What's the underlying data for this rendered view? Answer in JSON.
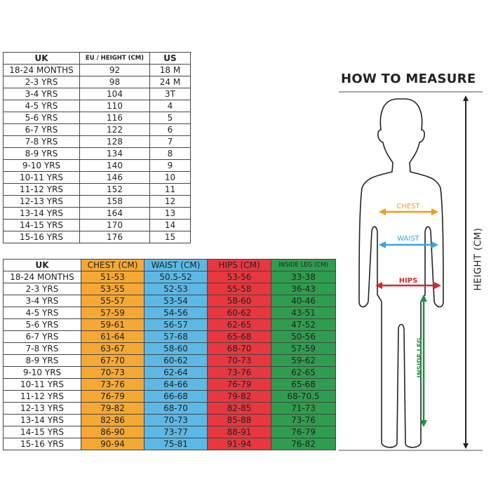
{
  "size_table": {
    "headers": [
      "UK",
      "EU / HEIGHT (CM)",
      "US"
    ],
    "rows": [
      [
        "18-24 MONTHS",
        "92",
        "18 M"
      ],
      [
        "2-3 YRS",
        "98",
        "24 M"
      ],
      [
        "3-4 YRS",
        "104",
        "3T"
      ],
      [
        "4-5 YRS",
        "110",
        "4"
      ],
      [
        "5-6 YRS",
        "116",
        "5"
      ],
      [
        "6-7 YRS",
        "122",
        "6"
      ],
      [
        "7-8 YRS",
        "128",
        "7"
      ],
      [
        "8-9 YRS",
        "134",
        "8"
      ],
      [
        "9-10 YRS",
        "140",
        "9"
      ],
      [
        "10-11 YRS",
        "146",
        "10"
      ],
      [
        "11-12 YRS",
        "152",
        "11"
      ],
      [
        "12-13 YRS",
        "158",
        "12"
      ],
      [
        "13-14 YRS",
        "164",
        "13"
      ],
      [
        "14-15 YRS",
        "170",
        "14"
      ],
      [
        "15-16 YRS",
        "176",
        "15"
      ]
    ]
  },
  "measure_table": {
    "headers": [
      "UK",
      "CHEST (CM)",
      "WAIST (CM)",
      "HIPS (CM)",
      "INSIDE LEG (CM)"
    ],
    "rows": [
      [
        "18-24 MONTHS",
        "51-53",
        "50.5-52",
        "53-56",
        "33-38"
      ],
      [
        "2-3 YRS",
        "53-55",
        "52-53",
        "55-58",
        "36-43"
      ],
      [
        "3-4 YRS",
        "55-57",
        "53-54",
        "58-60",
        "40-46"
      ],
      [
        "4-5 YRS",
        "57-59",
        "54-56",
        "60-62",
        "43-51"
      ],
      [
        "5-6 YRS",
        "59-61",
        "56-57",
        "62-65",
        "47-52"
      ],
      [
        "6-7 YRS",
        "61-64",
        "57-68",
        "65-68",
        "50-56"
      ],
      [
        "7-8 YRS",
        "63-67",
        "58-60",
        "68-70",
        "57-59"
      ],
      [
        "8-9 YRS",
        "67-70",
        "60-62",
        "70-73",
        "59-62"
      ],
      [
        "9-10 YRS",
        "70-73",
        "62-64",
        "73-76",
        "62-65"
      ],
      [
        "10-11 YRS",
        "73-76",
        "64-66",
        "76-79",
        "65-68"
      ],
      [
        "11-12 YRS",
        "76-79",
        "66-68",
        "79-82",
        "68-70.5"
      ],
      [
        "12-13 YRS",
        "79-82",
        "68-70",
        "82-85",
        "71-73"
      ],
      [
        "13-14 YRS",
        "82-86",
        "70-73",
        "85-88",
        "73-76"
      ],
      [
        "14-15 YRS",
        "86-90",
        "73-77",
        "88-91",
        "76-79"
      ],
      [
        "15-16 YRS",
        "90-94",
        "75-81",
        "91-94",
        "76-82"
      ]
    ]
  },
  "guide": {
    "title": "HOW TO MEASURE",
    "chest": "CHEST",
    "waist": "WAIST",
    "hips": "HIPS",
    "inside_leg": "INSIDE LEG",
    "height": "HEIGHT (CM)"
  },
  "colors": {
    "chest": "#f5a833",
    "waist": "#5cb9e6",
    "hips": "#e8373f",
    "inside_leg": "#2f9d4f",
    "chest_arrow": "#f39c12",
    "waist_arrow": "#3aa5dc",
    "hips_arrow": "#d7262e",
    "leg_arrow": "#1f8f3f"
  }
}
